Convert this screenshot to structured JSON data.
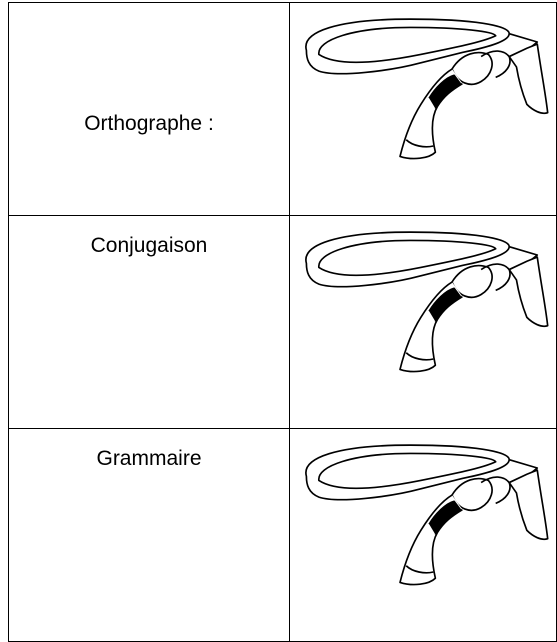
{
  "table": {
    "rows": [
      [
        "Orthographe :"
      ],
      [
        "Conjugaison"
      ],
      [
        "Grammaire"
      ]
    ]
  }
}
